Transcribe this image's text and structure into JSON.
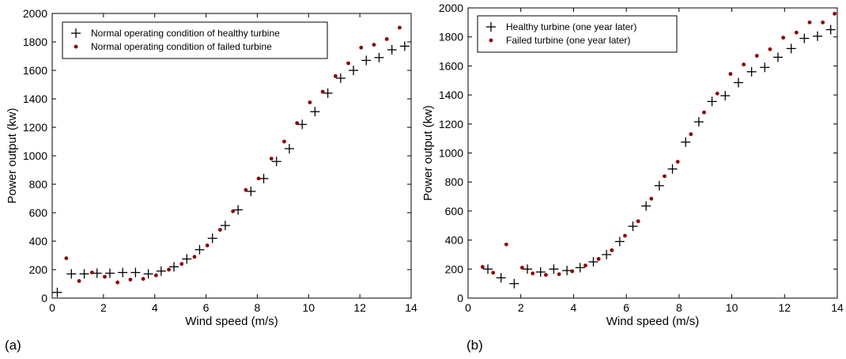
{
  "chart_data": [
    {
      "type": "scatter",
      "panel_label": "(a)",
      "xlabel": "Wind speed (m/s)",
      "ylabel": "Power output (kw)",
      "xlim": [
        0,
        14
      ],
      "ylim": [
        0,
        2000
      ],
      "xticks": [
        0,
        2,
        4,
        6,
        8,
        10,
        12,
        14
      ],
      "yticks": [
        0,
        200,
        400,
        600,
        800,
        1000,
        1200,
        1400,
        1600,
        1800,
        2000
      ],
      "legend_position": "top-left",
      "grid": false,
      "series": [
        {
          "name": "Normal operating condition of healthy turbine",
          "marker": "plus",
          "color": "#000000",
          "x": [
            0.2,
            0.75,
            1.25,
            1.75,
            2.25,
            2.75,
            3.25,
            3.75,
            4.25,
            4.75,
            5.25,
            5.75,
            6.25,
            6.75,
            7.25,
            7.75,
            8.25,
            8.75,
            9.25,
            9.75,
            10.25,
            10.75,
            11.25,
            11.75,
            12.25,
            12.75,
            13.25,
            13.75
          ],
          "y": [
            40,
            170,
            170,
            175,
            175,
            180,
            180,
            170,
            190,
            220,
            275,
            340,
            420,
            510,
            620,
            750,
            840,
            960,
            1050,
            1220,
            1310,
            1440,
            1545,
            1600,
            1670,
            1690,
            1745,
            1770
          ]
        },
        {
          "name": "Normal operating condition of failed turbine",
          "marker": "dot",
          "color": "#8b0000",
          "x": [
            0.55,
            1.05,
            1.55,
            2.05,
            2.55,
            3.05,
            3.55,
            4.05,
            4.55,
            5.05,
            5.55,
            6.05,
            6.55,
            7.05,
            7.55,
            8.05,
            8.55,
            9.05,
            9.55,
            10.05,
            10.55,
            11.05,
            11.55,
            12.05,
            12.55,
            13.05,
            13.55
          ],
          "y": [
            280,
            120,
            180,
            150,
            110,
            130,
            135,
            160,
            200,
            240,
            290,
            370,
            480,
            610,
            760,
            840,
            980,
            1100,
            1230,
            1375,
            1450,
            1560,
            1650,
            1760,
            1780,
            1820,
            1900
          ]
        }
      ]
    },
    {
      "type": "scatter",
      "panel_label": "(b)",
      "xlabel": "Wind speed (m/s)",
      "ylabel": "Power output (kw)",
      "xlim": [
        0,
        14
      ],
      "ylim": [
        0,
        2000
      ],
      "xticks": [
        0,
        2,
        4,
        6,
        8,
        10,
        12,
        14
      ],
      "yticks": [
        0,
        200,
        400,
        600,
        800,
        1000,
        1200,
        1400,
        1600,
        1800,
        2000
      ],
      "legend_position": "top-left",
      "grid": false,
      "series": [
        {
          "name": "Healthy turbine (one year later)",
          "marker": "plus",
          "color": "#000000",
          "x": [
            0.75,
            1.25,
            1.75,
            2.25,
            2.75,
            3.25,
            3.75,
            4.25,
            4.75,
            5.25,
            5.75,
            6.25,
            6.75,
            7.25,
            7.75,
            8.25,
            8.75,
            9.25,
            9.75,
            10.25,
            10.75,
            11.25,
            11.75,
            12.25,
            12.75,
            13.25,
            13.75
          ],
          "y": [
            200,
            140,
            100,
            200,
            180,
            200,
            190,
            210,
            250,
            300,
            390,
            495,
            635,
            775,
            890,
            1075,
            1215,
            1355,
            1395,
            1485,
            1560,
            1590,
            1660,
            1720,
            1790,
            1805,
            1850
          ]
        },
        {
          "name": "Failed turbine (one year later)",
          "marker": "dot",
          "color": "#8b0000",
          "x": [
            0.55,
            0.95,
            1.45,
            2.05,
            2.45,
            2.95,
            3.45,
            3.95,
            4.45,
            4.95,
            5.45,
            5.95,
            6.45,
            6.95,
            7.45,
            7.95,
            8.45,
            8.95,
            9.45,
            9.95,
            10.45,
            10.95,
            11.45,
            11.95,
            12.45,
            12.95,
            13.45,
            13.9
          ],
          "y": [
            215,
            175,
            370,
            210,
            170,
            160,
            165,
            185,
            225,
            270,
            330,
            430,
            530,
            685,
            840,
            940,
            1130,
            1280,
            1410,
            1545,
            1610,
            1670,
            1715,
            1795,
            1830,
            1900,
            1900,
            1960
          ]
        }
      ]
    }
  ]
}
